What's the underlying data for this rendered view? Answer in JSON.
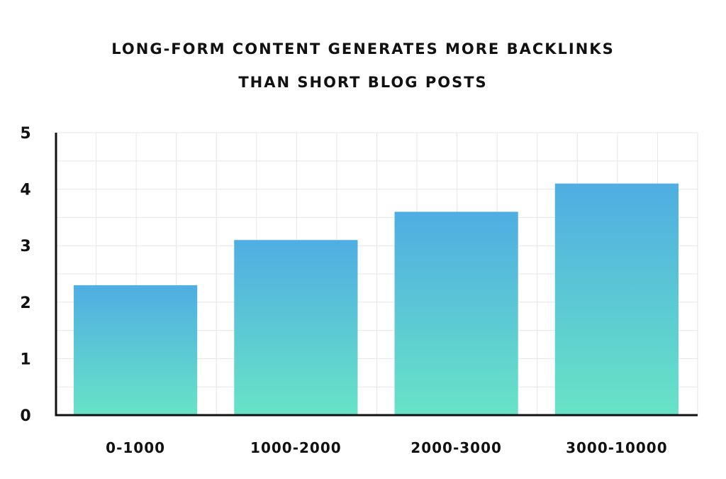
{
  "chart_data": {
    "type": "bar",
    "title_lines": [
      "LONG-FORM CONTENT GENERATES MORE BACKLINKS",
      "THAN SHORT BLOG POSTS"
    ],
    "categories": [
      "0-1000",
      "1000-2000",
      "2000-3000",
      "3000-10000"
    ],
    "values": [
      2.3,
      3.1,
      3.6,
      4.1
    ],
    "xlabel": "",
    "ylabel": "",
    "ylim": [
      0,
      5
    ],
    "yticks": [
      "0",
      "1",
      "2",
      "3",
      "4",
      "5"
    ],
    "grid": true,
    "colors": {
      "bar_top": "#4FADE2",
      "bar_bottom": "#68E3C6",
      "grid": "#E6E6E6",
      "axis": "#111111"
    }
  }
}
